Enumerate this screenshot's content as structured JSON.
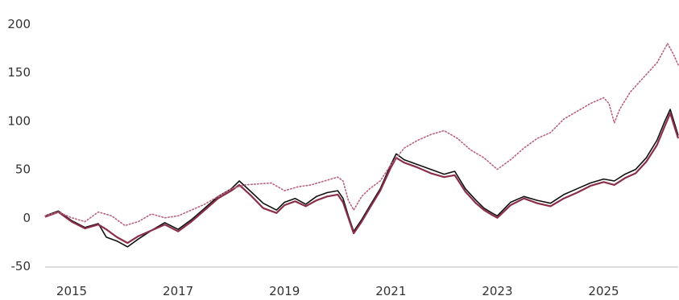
{
  "chart_data": {
    "type": "line",
    "title": "",
    "xlabel": "",
    "ylabel": "",
    "xlim": [
      2014.5,
      2026.4
    ],
    "ylim": [
      -50,
      200
    ],
    "y_ticks": [
      -50,
      0,
      50,
      100,
      150,
      200
    ],
    "x_ticks": [
      2015,
      2017,
      2019,
      2021,
      2023,
      2025
    ],
    "grid": false,
    "legend": "none",
    "series": [
      {
        "color": "#111111",
        "style": "solid",
        "x": [
          2014.5,
          2014.75,
          2015.0,
          2015.25,
          2015.5,
          2015.65,
          2015.85,
          2016.05,
          2016.25,
          2016.5,
          2016.75,
          2017.0,
          2017.25,
          2017.5,
          2017.75,
          2018.0,
          2018.15,
          2018.35,
          2018.6,
          2018.85,
          2019.0,
          2019.2,
          2019.4,
          2019.6,
          2019.8,
          2020.0,
          2020.1,
          2020.2,
          2020.3,
          2020.45,
          2020.6,
          2020.8,
          2021.0,
          2021.1,
          2021.25,
          2021.5,
          2021.75,
          2022.0,
          2022.2,
          2022.4,
          2022.6,
          2022.75,
          2022.9,
          2023.0,
          2023.25,
          2023.5,
          2023.75,
          2024.0,
          2024.25,
          2024.5,
          2024.75,
          2025.0,
          2025.2,
          2025.4,
          2025.6,
          2025.8,
          2026.0,
          2026.15,
          2026.25,
          2026.4
        ],
        "values": [
          2,
          7,
          -3,
          -10,
          -6,
          -20,
          -24,
          -30,
          -22,
          -13,
          -5,
          -12,
          -2,
          10,
          22,
          30,
          38,
          28,
          15,
          8,
          16,
          20,
          14,
          22,
          26,
          28,
          20,
          2,
          -14,
          -2,
          12,
          30,
          55,
          66,
          60,
          55,
          50,
          45,
          48,
          30,
          18,
          10,
          5,
          2,
          16,
          22,
          18,
          15,
          24,
          30,
          36,
          40,
          38,
          45,
          50,
          62,
          80,
          100,
          112,
          85
        ]
      },
      {
        "color": "#8a2f4a",
        "style": "solid",
        "x": [
          2014.5,
          2014.75,
          2015.0,
          2015.25,
          2015.5,
          2015.65,
          2015.85,
          2016.05,
          2016.25,
          2016.5,
          2016.75,
          2017.0,
          2017.25,
          2017.5,
          2017.75,
          2018.0,
          2018.15,
          2018.35,
          2018.6,
          2018.85,
          2019.0,
          2019.2,
          2019.4,
          2019.6,
          2019.8,
          2020.0,
          2020.1,
          2020.2,
          2020.3,
          2020.45,
          2020.6,
          2020.8,
          2021.0,
          2021.1,
          2021.25,
          2021.5,
          2021.75,
          2022.0,
          2022.2,
          2022.4,
          2022.6,
          2022.75,
          2022.9,
          2023.0,
          2023.25,
          2023.5,
          2023.75,
          2024.0,
          2024.25,
          2024.5,
          2024.75,
          2025.0,
          2025.2,
          2025.4,
          2025.6,
          2025.8,
          2026.0,
          2026.15,
          2026.25,
          2026.4
        ],
        "values": [
          1,
          6,
          -4,
          -11,
          -7,
          -12,
          -20,
          -26,
          -19,
          -13,
          -7,
          -14,
          -4,
          8,
          20,
          28,
          34,
          24,
          10,
          5,
          13,
          17,
          12,
          18,
          22,
          24,
          16,
          0,
          -16,
          -4,
          10,
          28,
          52,
          62,
          57,
          52,
          46,
          42,
          44,
          27,
          15,
          8,
          3,
          0,
          13,
          20,
          15,
          12,
          20,
          26,
          33,
          37,
          34,
          41,
          46,
          58,
          75,
          95,
          108,
          82
        ]
      },
      {
        "color": "#b8627b",
        "style": "dotted",
        "x": [
          2014.5,
          2014.75,
          2015.0,
          2015.25,
          2015.5,
          2015.75,
          2016.0,
          2016.25,
          2016.5,
          2016.75,
          2017.0,
          2017.25,
          2017.5,
          2017.75,
          2018.0,
          2018.25,
          2018.5,
          2018.75,
          2019.0,
          2019.25,
          2019.5,
          2019.75,
          2020.0,
          2020.1,
          2020.2,
          2020.3,
          2020.45,
          2020.6,
          2020.8,
          2021.0,
          2021.25,
          2021.5,
          2021.75,
          2022.0,
          2022.25,
          2022.5,
          2022.75,
          2023.0,
          2023.25,
          2023.5,
          2023.75,
          2024.0,
          2024.25,
          2024.5,
          2024.75,
          2025.0,
          2025.1,
          2025.2,
          2025.3,
          2025.5,
          2025.75,
          2026.0,
          2026.2,
          2026.3,
          2026.4
        ],
        "values": [
          2,
          6,
          0,
          -4,
          6,
          2,
          -8,
          -4,
          4,
          0,
          2,
          8,
          14,
          22,
          30,
          34,
          35,
          36,
          28,
          32,
          34,
          38,
          42,
          38,
          18,
          8,
          22,
          30,
          38,
          55,
          72,
          80,
          86,
          90,
          82,
          70,
          62,
          50,
          60,
          72,
          82,
          88,
          102,
          110,
          118,
          124,
          118,
          98,
          112,
          130,
          145,
          160,
          180,
          170,
          158
        ]
      }
    ]
  }
}
